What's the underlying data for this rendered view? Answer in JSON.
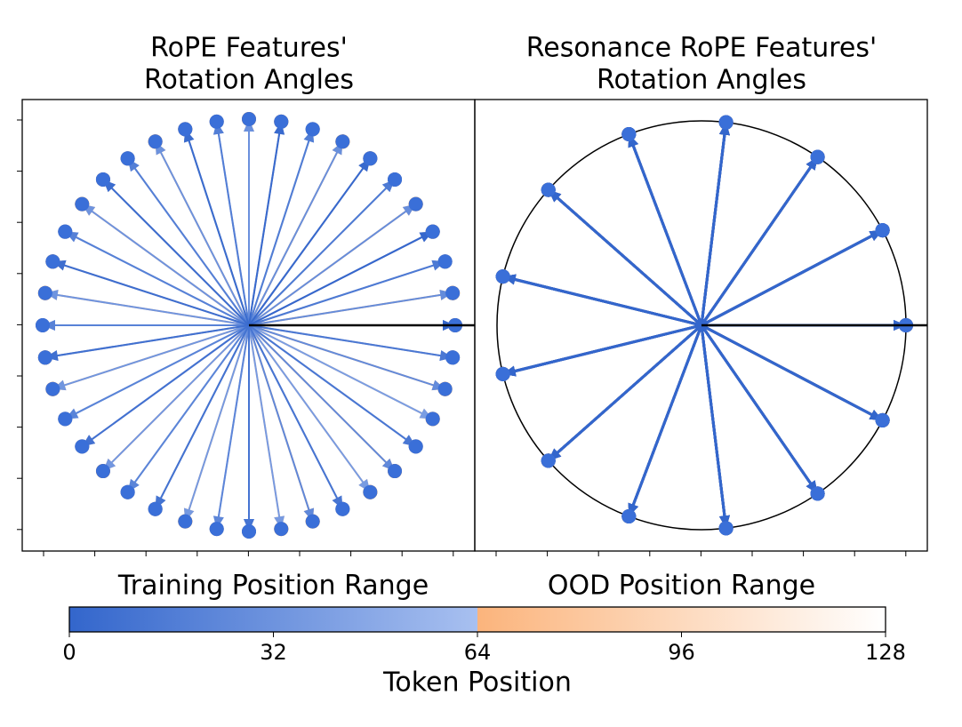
{
  "chart_data": [
    {
      "type": "rotation",
      "title": "RoPE Features'",
      "subtitle": "Rotation Angles",
      "angles": [
        0,
        27,
        54,
        81,
        108,
        135,
        162,
        189,
        216,
        243,
        270,
        297,
        324,
        351,
        378,
        405,
        432,
        459,
        486,
        513,
        540,
        567,
        594,
        621,
        648,
        675,
        702,
        729,
        756,
        783,
        810,
        837,
        864,
        891,
        918,
        945,
        972,
        999,
        1026,
        1053,
        1080,
        1107,
        1134,
        1161,
        1188,
        1215,
        1242,
        1269,
        1296,
        1323,
        1350,
        1377,
        1404,
        1431,
        1458,
        1485,
        1512,
        1539,
        1566,
        1593,
        1620,
        1647,
        1674,
        1701,
        1728,
        1755,
        1782,
        1809,
        1836,
        1863,
        1890,
        1917,
        1944,
        1971,
        1998,
        2025,
        2052,
        2079,
        2106,
        2133,
        2160,
        2187,
        2214,
        2241,
        2268,
        2295,
        2322,
        2349,
        2376,
        2403,
        2430,
        2457,
        2484,
        2511,
        2538,
        2565,
        2592,
        2619,
        2646,
        2673,
        2700,
        2727,
        2754,
        2781,
        2808,
        2835,
        2862,
        2889,
        2916,
        2943,
        2970,
        2997,
        3024,
        3051,
        3078,
        3105,
        3132,
        3159,
        3186,
        3213,
        3240,
        3267,
        3294,
        3321,
        3348,
        3375,
        3402,
        3429
      ],
      "circle": false
    },
    {
      "type": "rotation",
      "title": "Resonance RoPE Features'",
      "subtitle": "Rotation Angles",
      "angles": [
        0,
        27.7,
        55.4,
        83.1,
        110.8,
        138.5,
        166.2,
        193.8,
        221.5,
        249.2,
        276.9,
        304.6,
        332.3,
        0,
        27.7,
        55.4,
        83.1,
        110.8,
        138.5,
        166.2,
        193.8,
        221.5,
        249.2,
        276.9,
        304.6,
        332.3,
        0,
        27.7,
        55.4,
        83.1,
        110.8,
        138.5,
        166.2,
        193.8,
        221.5,
        249.2,
        276.9,
        304.6,
        332.3,
        0,
        27.7,
        55.4,
        83.1,
        110.8,
        138.5,
        166.2,
        193.8,
        221.5,
        249.2,
        276.9,
        304.6,
        332.3,
        0,
        27.7,
        55.4,
        83.1,
        110.8,
        138.5,
        166.2,
        193.8,
        221.5,
        249.2,
        276.9,
        304.6,
        332.3,
        0,
        27.7,
        55.4,
        83.1,
        110.8,
        138.5,
        166.2,
        193.8,
        221.5,
        249.2,
        276.9,
        304.6,
        332.3,
        0,
        27.7,
        55.4,
        83.1,
        110.8,
        138.5,
        166.2,
        193.8,
        221.5,
        249.2,
        276.9,
        304.6,
        332.3,
        0,
        27.7,
        55.4,
        83.1,
        110.8,
        138.5,
        166.2,
        193.8,
        221.5,
        249.2,
        276.9,
        304.6,
        332.3,
        0,
        27.7,
        55.4,
        83.1,
        110.8,
        138.5,
        166.2,
        193.8,
        221.5,
        249.2,
        276.9,
        304.6,
        332.3,
        0,
        27.7,
        55.4,
        83.1,
        110.8,
        138.5,
        166.2,
        193.8,
        221.5,
        249.2,
        276.9
      ],
      "circle": true
    },
    {
      "type": "colorbar",
      "xlabel": "Token Position",
      "xlim": [
        0,
        128
      ],
      "xticks": [
        0,
        32,
        64,
        96,
        128
      ],
      "ranges": [
        {
          "label": "Training Position Range",
          "from": 0,
          "to": 64,
          "colors": [
            "#3366cc",
            "#a8c0f0"
          ],
          "marker_color": "#3a6fd8"
        },
        {
          "label": "OOD Position Range",
          "from": 64,
          "to": 128,
          "colors": [
            "#fbb47c",
            "#ffffff"
          ],
          "marker_color": "#f58a1f"
        }
      ]
    }
  ]
}
